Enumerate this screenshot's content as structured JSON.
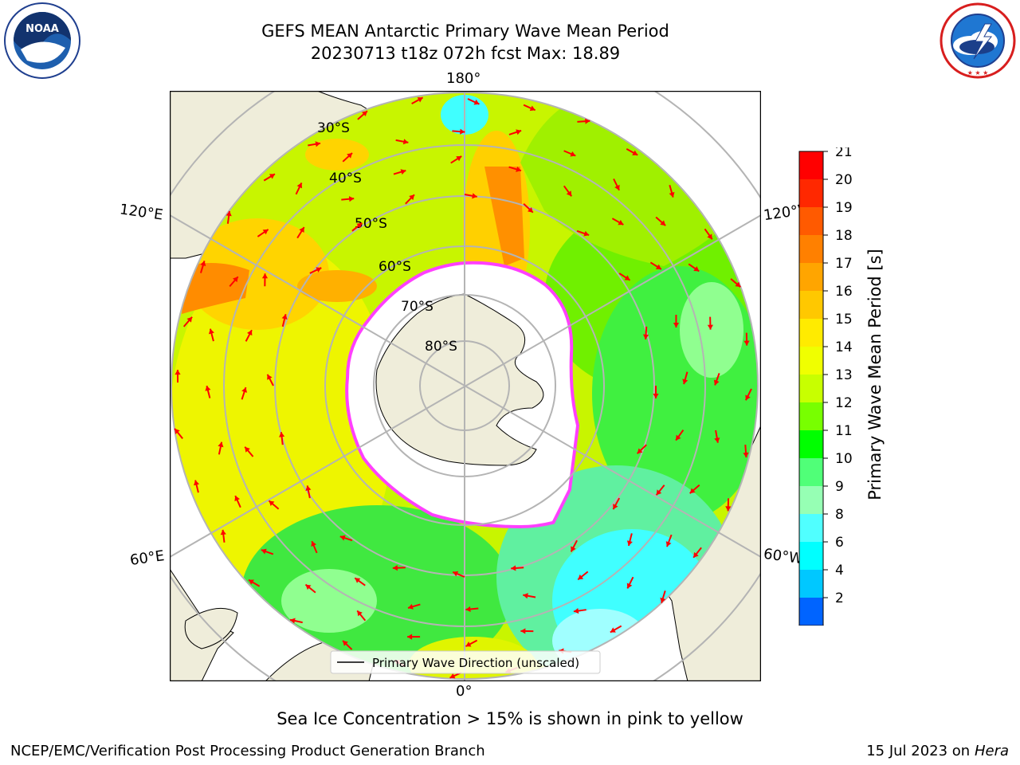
{
  "header": {
    "title_line1": "GEFS MEAN Antarctic Primary Wave Mean Period",
    "title_line2": "20230713 t18z 072h fcst   Max: 18.89",
    "noaa_logo_text": "NOAA",
    "noaa_ring_text": "NATIONAL OCEANIC AND ATMOSPHERIC ADMINISTRATION · U.S. DEPARTMENT OF COMMERCE",
    "nws_ring_text": "NATIONAL WEATHER SERVICE"
  },
  "map": {
    "projection": "south-polar-stereographic",
    "lon_labels": {
      "top": "180°",
      "bottom": "0°",
      "left_upper": "120°E",
      "left_lower": "60°E",
      "right_upper": "120°W",
      "right_lower": "60°W"
    },
    "lat_labels": [
      "30°S",
      "40°S",
      "50°S",
      "60°S",
      "70°S",
      "80°S"
    ],
    "legend_label": "Primary Wave Direction (unscaled)",
    "colors": {
      "ocean_base": "#c8f500",
      "land": "#efedda",
      "ice": "#ffffff",
      "ice_edge": "#ff40ff",
      "arrow": "#ff0000",
      "grid": "#b4b4b4"
    }
  },
  "colorbar": {
    "label": "Primary Wave Mean Period [s]",
    "ticks": [
      "21",
      "20",
      "19",
      "18",
      "17",
      "16",
      "15",
      "14",
      "13",
      "12",
      "11",
      "10",
      "9",
      "8",
      "6",
      "4",
      "2"
    ],
    "colors": [
      "#ff0000",
      "#ff2800",
      "#ff5a00",
      "#ff8000",
      "#ffa500",
      "#ffc800",
      "#ffeb00",
      "#f0ff00",
      "#c8ff00",
      "#78ff00",
      "#00ff00",
      "#50ff78",
      "#96ffb4",
      "#50ffff",
      "#00ffff",
      "#00c8ff",
      "#0064ff"
    ],
    "extend_color": "#0000ff"
  },
  "captions": {
    "ice_note": "Sea Ice Concentration > 15% is shown in pink to yellow",
    "branch": "NCEP/EMC/Verification Post Processing Product Generation Branch",
    "date_prefix": "15 Jul 2023 on ",
    "host": "Hera"
  }
}
